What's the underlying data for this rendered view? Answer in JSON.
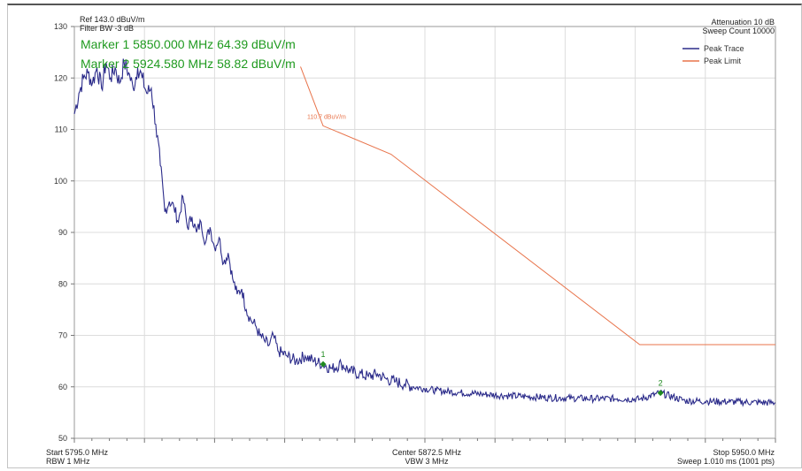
{
  "header": {
    "ref_level": "Ref 143.0 dBuV/m",
    "filter_bw": "Filter BW -3 dB",
    "attenuation": "Attenuation 10 dB",
    "sweep_count": "Sweep Count 10000"
  },
  "markers": [
    {
      "id": "1",
      "readout": "Marker 1 5850.000 MHz 64.39 dBuV/m",
      "freq": 5850.0,
      "level": 64.39,
      "color": "#1f8a1f"
    },
    {
      "id": "2",
      "readout": "Marker 2 5924.580 MHz 58.82 dBuV/m",
      "freq": 5924.58,
      "level": 58.82,
      "color": "#1f8a1f"
    }
  ],
  "footer": {
    "start": "Start 5795.0 MHz",
    "rbw": "RBW 1 MHz",
    "center": "Center 5872.5 MHz",
    "vbw": "VBW 3 MHz",
    "stop": "Stop 5950.0 MHz",
    "sweep": "Sweep 1.010 ms (1001 pts)"
  },
  "chart_data": {
    "type": "line",
    "xlim": [
      5795.0,
      5950.0
    ],
    "ylim": [
      50,
      130
    ],
    "yticks": [
      50,
      60,
      70,
      80,
      90,
      100,
      110,
      120,
      130
    ],
    "x_divisions": 10,
    "grid": true,
    "legend_position": "top-right",
    "limit_annotation": "110.7 dBuV/m",
    "series": [
      {
        "name": "Peak Trace",
        "color": "#2b2b8a",
        "x": [
          5795.0,
          5796.0,
          5797.0,
          5798.0,
          5799.0,
          5800.0,
          5801.0,
          5802.0,
          5803.0,
          5804.0,
          5805.0,
          5806.0,
          5807.0,
          5808.0,
          5809.0,
          5810.0,
          5811.0,
          5812.0,
          5813.0,
          5814.0,
          5815.0,
          5816.0,
          5817.0,
          5818.0,
          5819.0,
          5820.0,
          5821.0,
          5822.0,
          5823.0,
          5824.0,
          5825.0,
          5826.0,
          5827.0,
          5828.0,
          5829.0,
          5830.0,
          5831.0,
          5832.0,
          5833.0,
          5834.0,
          5835.0,
          5836.0,
          5837.0,
          5838.0,
          5839.0,
          5840.0,
          5842.0,
          5844.0,
          5846.0,
          5848.0,
          5850.0,
          5852.0,
          5854.0,
          5856.0,
          5858.0,
          5860.0,
          5862.0,
          5864.0,
          5866.0,
          5868.0,
          5870.0,
          5875.0,
          5880.0,
          5885.0,
          5890.0,
          5895.0,
          5900.0,
          5905.0,
          5910.0,
          5915.0,
          5920.0,
          5924.58,
          5930.0,
          5935.0,
          5940.0,
          5945.0,
          5950.0
        ],
        "y": [
          113,
          117,
          120,
          121,
          119,
          122,
          118,
          123,
          120,
          122,
          119,
          123,
          121,
          118,
          122,
          120,
          117,
          118,
          111,
          103,
          94,
          96,
          95,
          92,
          97,
          91,
          93,
          90,
          92,
          88,
          91,
          87,
          89,
          84,
          86,
          81,
          78,
          79,
          75,
          73,
          72,
          70,
          69,
          68,
          70,
          67,
          66,
          65,
          66,
          65,
          64.39,
          63.5,
          64.5,
          63,
          62.5,
          62,
          62.5,
          61.5,
          61,
          60.5,
          60,
          59.3,
          58.9,
          58.6,
          58.3,
          58.1,
          57.9,
          57.8,
          57.7,
          57.7,
          57.6,
          58.82,
          57.3,
          57.2,
          57.1,
          57.0,
          56.9
        ]
      },
      {
        "name": "Peak Limit",
        "color": "#e8734a",
        "x": [
          5845.0,
          5850.0,
          5865.0,
          5920.0,
          5950.0
        ],
        "y": [
          122.2,
          110.7,
          105.2,
          68.2,
          68.2
        ]
      }
    ]
  }
}
